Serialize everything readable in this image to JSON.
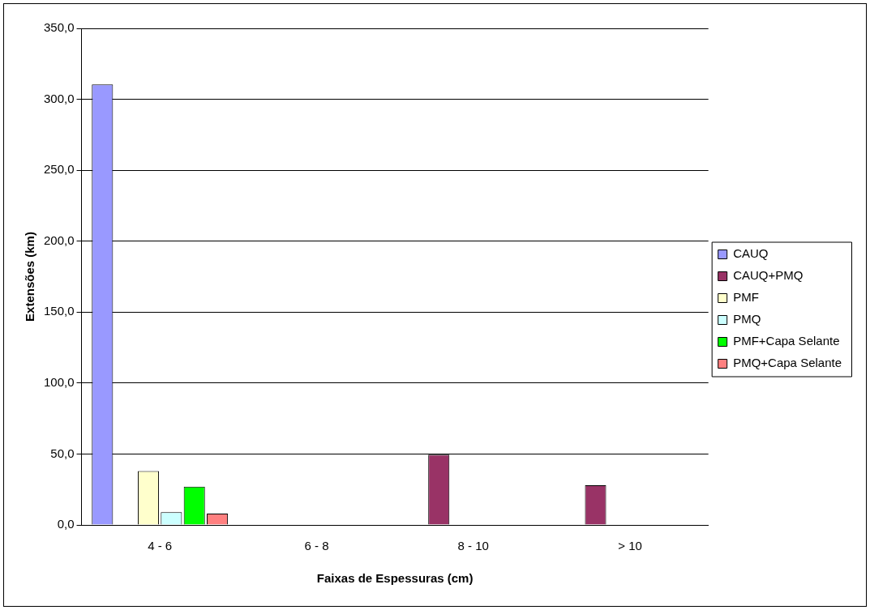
{
  "chart_data": {
    "type": "bar",
    "xlabel": "Faixas de Espessuras (cm)",
    "ylabel": "Extensões (km)",
    "categories": [
      "4 - 6",
      "6 - 8",
      "8 - 10",
      "> 10"
    ],
    "series": [
      {
        "name": "CAUQ",
        "color": "#9999ff",
        "values": [
          310.5,
          null,
          null,
          null
        ]
      },
      {
        "name": "CAUQ+PMQ",
        "color": "#993366",
        "values": [
          null,
          null,
          49.5,
          28
        ]
      },
      {
        "name": "PMF",
        "color": "#ffffcc",
        "values": [
          38,
          null,
          null,
          null
        ]
      },
      {
        "name": "PMQ",
        "color": "#ccffff",
        "values": [
          9,
          null,
          null,
          null
        ]
      },
      {
        "name": "PMF+Capa Selante",
        "color": "#00ff00",
        "values": [
          27,
          null,
          null,
          null
        ]
      },
      {
        "name": "PMQ+Capa Selante",
        "color": "#ff8080",
        "values": [
          8,
          null,
          null,
          null
        ]
      }
    ],
    "ylim": [
      0,
      350
    ],
    "yticks": [
      {
        "value": 0,
        "label": "0,0"
      },
      {
        "value": 50,
        "label": "50,0"
      },
      {
        "value": 100,
        "label": "100,0"
      },
      {
        "value": 150,
        "label": "150,0"
      },
      {
        "value": 200,
        "label": "200,0"
      },
      {
        "value": 250,
        "label": "250,0"
      },
      {
        "value": 300,
        "label": "300,0"
      },
      {
        "value": 350,
        "label": "350,0"
      }
    ],
    "grid": "y",
    "legend": "right"
  }
}
